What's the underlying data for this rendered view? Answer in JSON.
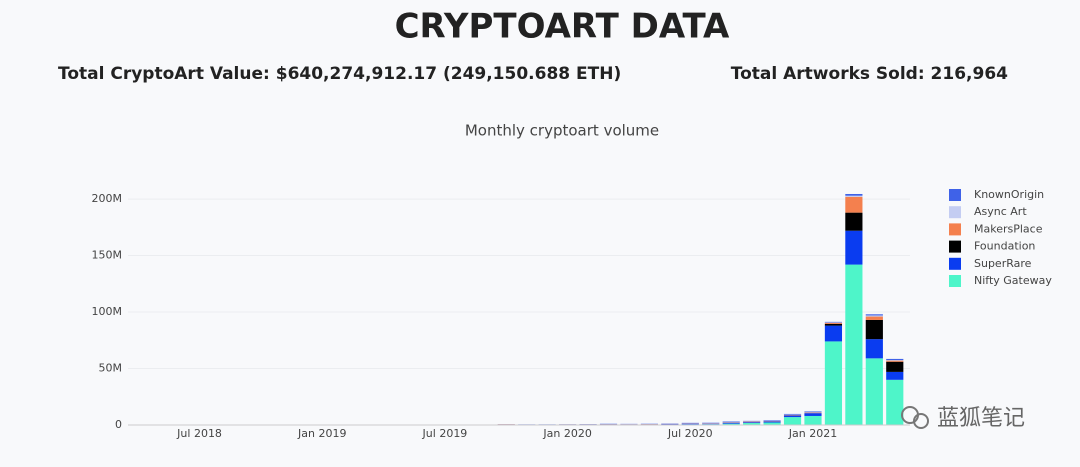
{
  "header": {
    "title": "CRYPTOART DATA",
    "total_value": "Total CryptoArt Value: $640,274,912.17 (249,150.688 ETH)",
    "total_sold": "Total Artworks Sold: 216,964"
  },
  "watermark": "蓝狐笔记",
  "chart_data": {
    "type": "stacked_bar",
    "title": "Monthly cryptoart volume",
    "categories": [
      null,
      null,
      null,
      "Jul 2018",
      null,
      null,
      null,
      null,
      null,
      "Jan 2019",
      null,
      null,
      null,
      null,
      null,
      "Jul 2019",
      null,
      null,
      null,
      null,
      null,
      "Jan 2020",
      null,
      null,
      null,
      null,
      null,
      "Jul 2020",
      null,
      null,
      null,
      null,
      null,
      "Jan 2021",
      null,
      null,
      null,
      null
    ],
    "series": [
      {
        "name": "Nifty Gateway",
        "color": "#4ef5c9",
        "values": [
          0,
          0,
          0,
          0,
          0,
          0,
          0,
          0,
          0,
          0,
          0,
          0,
          0,
          0,
          0,
          0,
          0,
          0,
          0,
          0,
          0,
          100000,
          150000,
          300000,
          200000,
          250000,
          300000,
          600000,
          700000,
          1200000,
          1800000,
          2200000,
          7000000,
          8000000,
          74000000,
          142000000,
          59000000,
          40000000
        ]
      },
      {
        "name": "SuperRare",
        "color": "#0a3cf0",
        "values": [
          50000,
          80000,
          100000,
          120000,
          150000,
          100000,
          120000,
          150000,
          200000,
          200000,
          180000,
          150000,
          150000,
          200000,
          180000,
          200000,
          250000,
          200000,
          250000,
          300000,
          300000,
          350000,
          400000,
          400000,
          350000,
          400000,
          500000,
          600000,
          500000,
          900000,
          700000,
          1000000,
          1500000,
          2500000,
          14000000,
          30000000,
          17000000,
          7000000
        ]
      },
      {
        "name": "Foundation",
        "color": "#000000",
        "values": [
          0,
          0,
          0,
          0,
          0,
          0,
          0,
          0,
          0,
          0,
          0,
          0,
          0,
          0,
          0,
          0,
          0,
          0,
          0,
          0,
          0,
          0,
          0,
          0,
          0,
          0,
          0,
          0,
          0,
          0,
          0,
          0,
          0,
          0,
          1500000,
          16000000,
          17000000,
          9000000
        ]
      },
      {
        "name": "MakersPlace",
        "color": "#f4804e",
        "values": [
          0,
          0,
          10000,
          20000,
          20000,
          30000,
          30000,
          40000,
          50000,
          50000,
          60000,
          60000,
          70000,
          80000,
          100000,
          80000,
          90000,
          100000,
          400000,
          150000,
          120000,
          100000,
          120000,
          150000,
          150000,
          200000,
          200000,
          250000,
          300000,
          400000,
          500000,
          300000,
          400000,
          500000,
          1000000,
          14000000,
          3000000,
          1000000
        ]
      },
      {
        "name": "Async Art",
        "color": "#c4cdf2",
        "values": [
          0,
          0,
          0,
          0,
          0,
          0,
          0,
          0,
          0,
          0,
          0,
          0,
          0,
          0,
          0,
          0,
          0,
          0,
          0,
          0,
          0,
          0,
          50000,
          80000,
          100000,
          150000,
          100000,
          150000,
          200000,
          300000,
          250000,
          200000,
          300000,
          300000,
          300000,
          1000000,
          1000000,
          500000
        ]
      },
      {
        "name": "KnownOrigin",
        "color": "#3f62e8",
        "values": [
          20000,
          30000,
          30000,
          40000,
          40000,
          50000,
          50000,
          60000,
          60000,
          70000,
          70000,
          80000,
          80000,
          90000,
          90000,
          100000,
          100000,
          100000,
          120000,
          120000,
          150000,
          150000,
          150000,
          200000,
          200000,
          200000,
          250000,
          300000,
          300000,
          400000,
          400000,
          500000,
          600000,
          700000,
          500000,
          1500000,
          1000000,
          1000000
        ]
      }
    ],
    "ylim": [
      0,
      216000000
    ],
    "yticks": [
      0,
      {
        "value": 50000000,
        "label": "50M"
      },
      {
        "value": 100000000,
        "label": "100M"
      },
      {
        "value": 150000000,
        "label": "150M"
      },
      {
        "value": 200000000,
        "label": "200M"
      }
    ],
    "grid": true,
    "legend": "top-right"
  }
}
